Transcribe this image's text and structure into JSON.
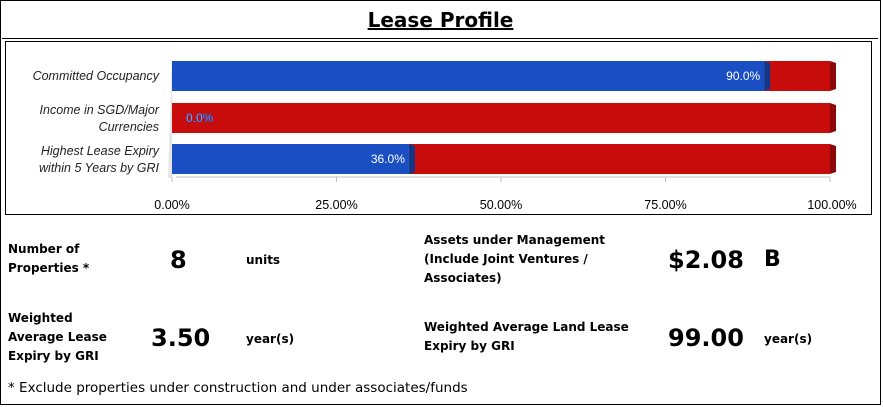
{
  "title": "Lease Profile",
  "chart_data": {
    "type": "bar",
    "orientation": "horizontal",
    "stacked": true,
    "categories": [
      [
        "Committed Occupancy"
      ],
      [
        "Income in SGD/Major",
        "Currencies"
      ],
      [
        "Highest Lease Expiry",
        "within 5 Years by GRI"
      ]
    ],
    "values": [
      90.0,
      0.0,
      36.0
    ],
    "value_labels": [
      "90.0%",
      "0.0%",
      "36.0%"
    ],
    "remainder_to": 100,
    "xlim": [
      0,
      100
    ],
    "x_ticks": [
      "0.00%",
      "25.00%",
      "50.00%",
      "75.00%",
      "100.00%"
    ],
    "colors": {
      "value": "#1a4fc4",
      "remainder": "#c80c0c"
    },
    "grid": false,
    "legend": "none"
  },
  "stats": {
    "properties": {
      "label": [
        "Number of",
        "Properties *"
      ],
      "value": "8",
      "unit": "units"
    },
    "wale": {
      "label": [
        "Weighted",
        "Average Lease",
        "Expiry by GRI"
      ],
      "value": "3.50",
      "unit": "year(s)"
    },
    "aum": {
      "label": [
        "Assets under Management",
        "(Include Joint Ventures /",
        "Associates)"
      ],
      "value": "$2.08",
      "unit": "B"
    },
    "land_lease": {
      "label": [
        "Weighted Average Land Lease",
        "Expiry by GRI"
      ],
      "value": "99.00",
      "unit": "year(s)"
    }
  },
  "footnote": "* Exclude properties under construction and under associates/funds"
}
